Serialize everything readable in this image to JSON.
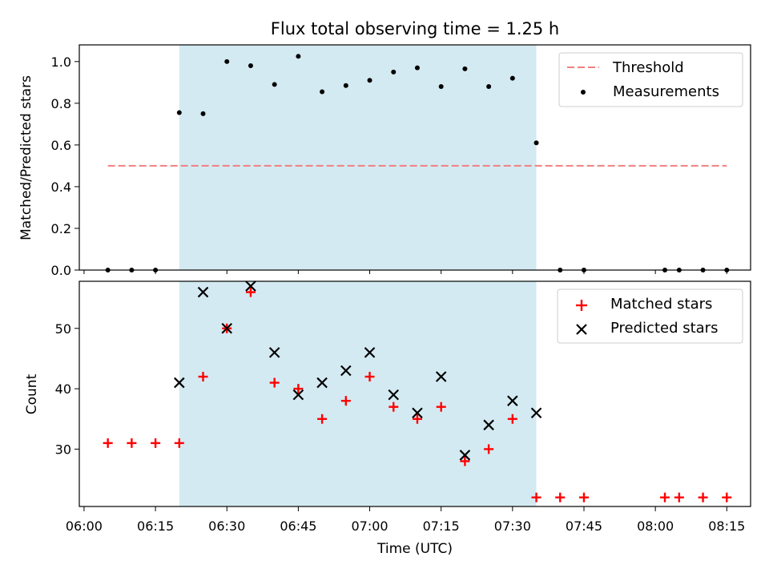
{
  "chart_data": [
    {
      "type": "scatter",
      "title": "Flux total observing time = 1.25 h",
      "xlabel": "",
      "ylabel": "Matched/Predicted stars",
      "ylim": [
        0,
        1.08
      ],
      "yticks": [
        "0.0",
        "0.2",
        "0.4",
        "0.6",
        "0.8",
        "1.0"
      ],
      "shaded_interval": [
        "06:20",
        "07:35"
      ],
      "threshold": {
        "name": "Threshold",
        "y": 0.5,
        "x_range": [
          "06:05",
          "08:15"
        ],
        "color": "#f08080"
      },
      "series": [
        {
          "name": "Measurements",
          "color": "#000000",
          "x": [
            "06:05",
            "06:10",
            "06:15",
            "06:20",
            "06:25",
            "06:30",
            "06:35",
            "06:40",
            "06:45",
            "06:50",
            "06:55",
            "07:00",
            "07:05",
            "07:10",
            "07:15",
            "07:20",
            "07:25",
            "07:30",
            "07:35",
            "07:40",
            "07:45",
            "08:02",
            "08:05",
            "08:10",
            "08:15"
          ],
          "y": [
            0.0,
            0.0,
            0.0,
            0.755,
            0.75,
            1.0,
            0.98,
            0.89,
            1.025,
            0.855,
            0.885,
            0.91,
            0.95,
            0.97,
            0.88,
            0.965,
            0.88,
            0.92,
            0.61,
            0.0,
            0.0,
            0.0,
            0.0,
            0.0,
            0.0
          ]
        }
      ],
      "legend": {
        "position": "top-right",
        "entries": [
          "Threshold",
          "Measurements"
        ]
      },
      "shade_color": "#add8e6"
    },
    {
      "type": "scatter",
      "title": "",
      "xlabel": "Time (UTC)",
      "ylabel": "Count",
      "ylim": [
        20.5,
        57.8
      ],
      "yticks": [
        "30",
        "40",
        "50"
      ],
      "xlim": [
        "05:59",
        "08:20"
      ],
      "xticks": [
        "06:00",
        "06:15",
        "06:30",
        "06:45",
        "07:00",
        "07:15",
        "07:30",
        "07:45",
        "08:00",
        "08:15"
      ],
      "shaded_interval": [
        "06:20",
        "07:35"
      ],
      "series": [
        {
          "name": "Matched stars",
          "marker": "plus",
          "color": "#ff0000",
          "x": [
            "06:05",
            "06:10",
            "06:15",
            "06:20",
            "06:25",
            "06:30",
            "06:35",
            "06:40",
            "06:45",
            "06:50",
            "06:55",
            "07:00",
            "07:05",
            "07:10",
            "07:15",
            "07:20",
            "07:25",
            "07:30",
            "07:35",
            "07:40",
            "07:45",
            "08:02",
            "08:05",
            "08:10",
            "08:15"
          ],
          "y": [
            31,
            31,
            31,
            31,
            42,
            50,
            56,
            41,
            40,
            35,
            38,
            42,
            37,
            35,
            37,
            28,
            30,
            35,
            22,
            22,
            22,
            22,
            22,
            22,
            22
          ]
        },
        {
          "name": "Predicted stars",
          "marker": "x",
          "color": "#000000",
          "x": [
            "06:20",
            "06:25",
            "06:30",
            "06:35",
            "06:40",
            "06:45",
            "06:50",
            "06:55",
            "07:00",
            "07:05",
            "07:10",
            "07:15",
            "07:20",
            "07:25",
            "07:30",
            "07:35"
          ],
          "y": [
            41,
            56,
            50,
            57,
            46,
            39,
            41,
            43,
            46,
            39,
            36,
            42,
            29,
            34,
            38,
            36
          ]
        }
      ],
      "legend": {
        "position": "top-right",
        "entries": [
          "Matched stars",
          "Predicted stars"
        ]
      }
    }
  ]
}
